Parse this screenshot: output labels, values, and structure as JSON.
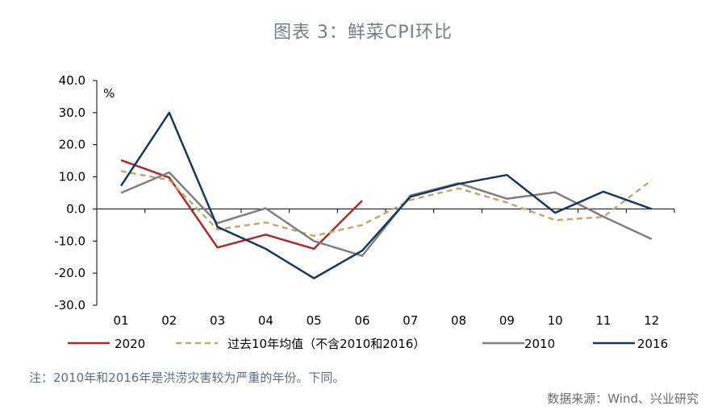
{
  "header": {
    "title": "图表 3：鲜菜CPI环比"
  },
  "chart_data": {
    "type": "line",
    "title": "图表 3：鲜菜CPI环比",
    "unit": "%",
    "categories": [
      "01",
      "02",
      "03",
      "04",
      "05",
      "06",
      "07",
      "08",
      "09",
      "10",
      "11",
      "12"
    ],
    "ylim": [
      -30,
      40
    ],
    "yticks": [
      -30,
      -20,
      -10,
      0,
      10,
      20,
      30,
      40
    ],
    "ytick_labels": [
      "-30.0",
      "-20.0",
      "-10.0",
      "0.0",
      "10.0",
      "20.0",
      "30.0",
      "40.0"
    ],
    "grid": false,
    "legend_position": "bottom",
    "series": [
      {
        "name": "2020",
        "color": "#b3262b",
        "dash": false,
        "values": [
          15.2,
          9.8,
          -12.0,
          -8.0,
          -12.4,
          2.6,
          null,
          null,
          null,
          null,
          null,
          null
        ]
      },
      {
        "name": "过去10年均值（不含2010和2016）",
        "color": "#c4a96a",
        "dash": true,
        "values": [
          11.8,
          9.0,
          -6.4,
          -4.2,
          -8.4,
          -5.0,
          2.8,
          6.4,
          2.0,
          -3.5,
          -2.5,
          9.0
        ]
      },
      {
        "name": "2010",
        "color": "#7f7f7f",
        "dash": false,
        "values": [
          5.0,
          11.4,
          -4.4,
          0.2,
          -10.0,
          -14.6,
          4.2,
          8.0,
          3.2,
          5.2,
          -2.4,
          -9.4
        ]
      },
      {
        "name": "2016",
        "color": "#17375e",
        "dash": false,
        "values": [
          7.2,
          30.0,
          -5.6,
          -12.4,
          -21.6,
          -13.0,
          3.8,
          7.8,
          10.6,
          -1.2,
          5.4,
          0.0
        ]
      }
    ]
  },
  "footer": {
    "note": "注：2010年和2016年是洪涝灾害较为严重的年份。下同。",
    "source": "数据来源：Wind、兴业研究"
  }
}
